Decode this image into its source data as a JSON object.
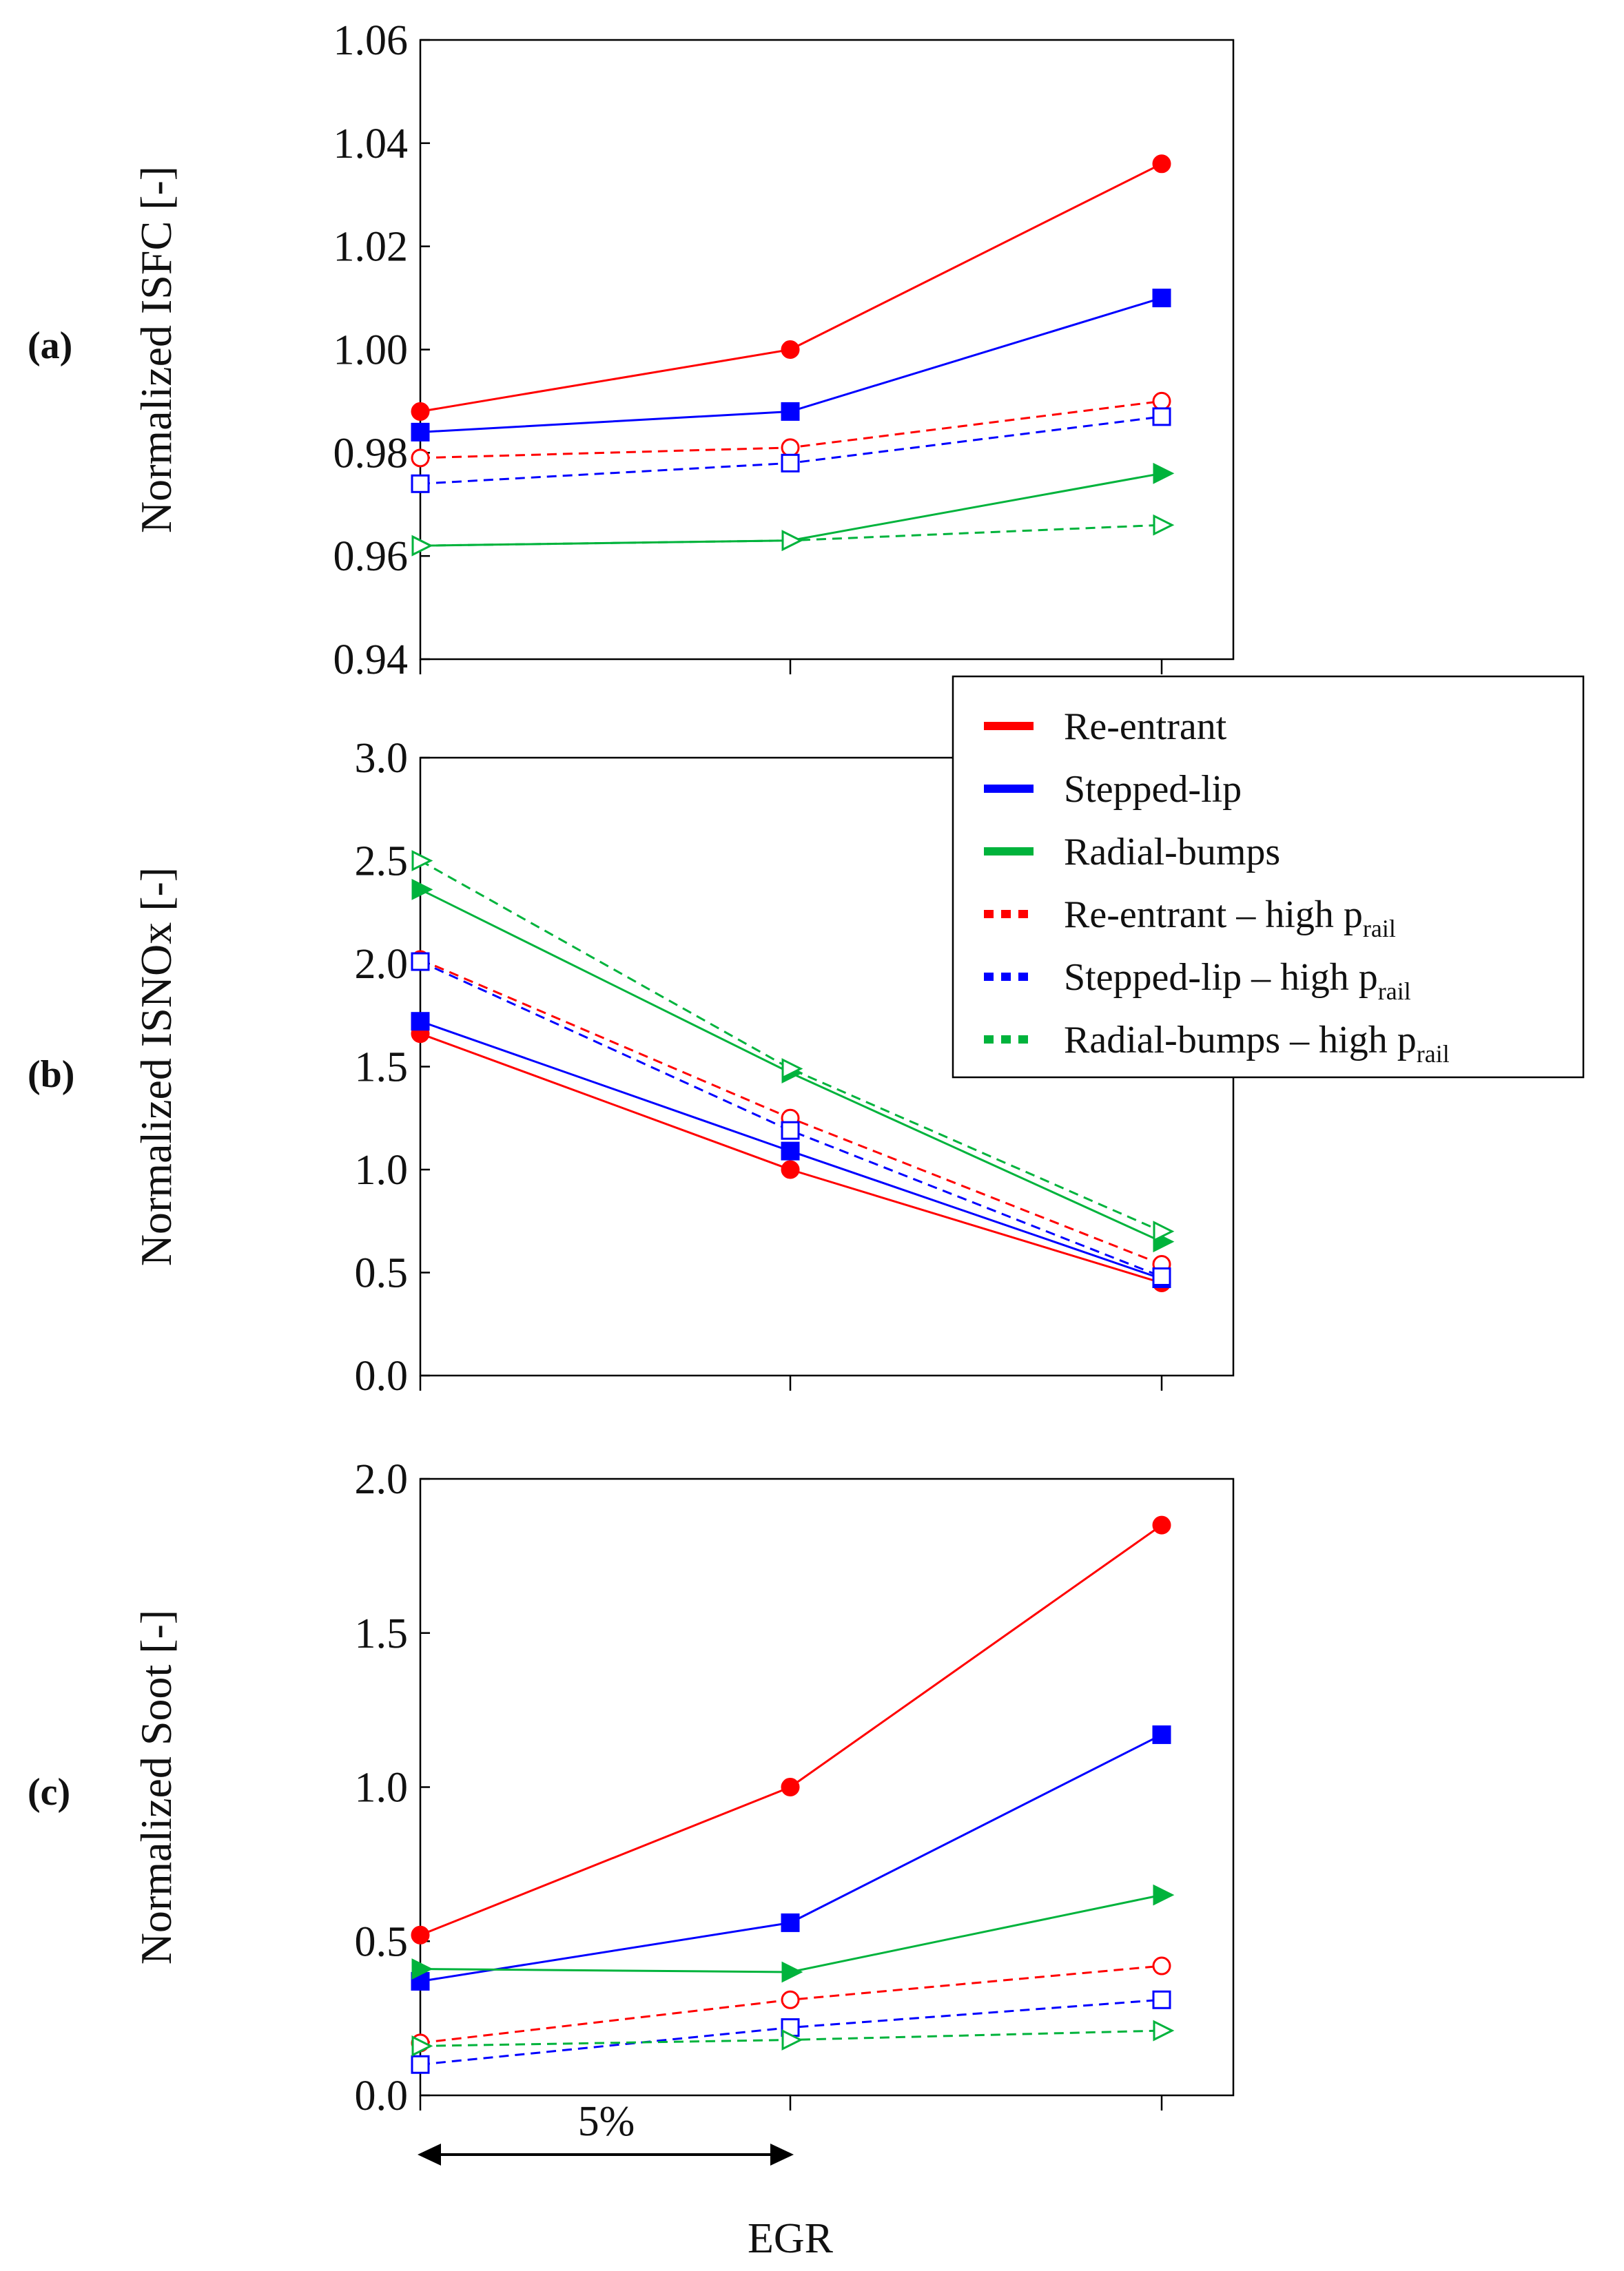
{
  "legend": [
    {
      "label": "Re-entrant",
      "sub": "",
      "color": "#ff0000",
      "dash": false
    },
    {
      "label": "Stepped-lip",
      "sub": "",
      "color": "#0000ff",
      "dash": false
    },
    {
      "label": "Radial-bumps",
      "sub": "",
      "color": "#00b33c",
      "dash": false
    },
    {
      "label": "Re-entrant – high p",
      "sub": "rail",
      "color": "#ff0000",
      "dash": true
    },
    {
      "label": "Stepped-lip – high p",
      "sub": "rail",
      "color": "#0000ff",
      "dash": true
    },
    {
      "label": "Radial-bumps – high p",
      "sub": "rail",
      "color": "#00b33c",
      "dash": true
    }
  ],
  "xlabel": "EGR",
  "annotation": "5%",
  "chart_data": [
    {
      "type": "line",
      "panel_label": "(a)",
      "ylabel": "Normalized ISFC [-]",
      "ylim": [
        0.94,
        1.06
      ],
      "yticks": [
        "0.94",
        "0.96",
        "0.98",
        "1.00",
        "1.02",
        "1.04",
        "1.06"
      ],
      "x": [
        1,
        2,
        3
      ],
      "series": [
        {
          "name": "Re-entrant",
          "color": "#ff0000",
          "dash": false,
          "marker": "circle",
          "filled": true,
          "values": [
            0.988,
            1.0,
            1.036
          ]
        },
        {
          "name": "Stepped-lip",
          "color": "#0000ff",
          "dash": false,
          "marker": "square",
          "filled": true,
          "values": [
            0.984,
            0.988,
            1.01
          ]
        },
        {
          "name": "Radial-bumps",
          "color": "#00b33c",
          "dash": false,
          "marker": "triangle",
          "filled": true,
          "values": [
            0.962,
            0.963,
            0.976
          ]
        },
        {
          "name": "Re-entrant – high prail",
          "color": "#ff0000",
          "dash": true,
          "marker": "circle",
          "filled": false,
          "values": [
            0.979,
            0.981,
            0.99
          ]
        },
        {
          "name": "Stepped-lip – high prail",
          "color": "#0000ff",
          "dash": true,
          "marker": "square",
          "filled": false,
          "values": [
            0.974,
            0.978,
            0.987
          ]
        },
        {
          "name": "Radial-bumps – high prail",
          "color": "#00b33c",
          "dash": true,
          "marker": "triangle",
          "filled": false,
          "values": [
            0.962,
            0.963,
            0.966
          ]
        }
      ]
    },
    {
      "type": "line",
      "panel_label": "(b)",
      "ylabel": "Normalized ISNOx [-]",
      "ylim": [
        0.0,
        3.0
      ],
      "yticks": [
        "0.0",
        "0.5",
        "1.0",
        "1.5",
        "2.0",
        "2.5",
        "3.0"
      ],
      "x": [
        1,
        2,
        3
      ],
      "series": [
        {
          "name": "Re-entrant",
          "color": "#ff0000",
          "dash": false,
          "marker": "circle",
          "filled": true,
          "values": [
            1.66,
            1.0,
            0.45
          ]
        },
        {
          "name": "Stepped-lip",
          "color": "#0000ff",
          "dash": false,
          "marker": "square",
          "filled": true,
          "values": [
            1.72,
            1.09,
            0.47
          ]
        },
        {
          "name": "Radial-bumps",
          "color": "#00b33c",
          "dash": false,
          "marker": "triangle",
          "filled": true,
          "values": [
            2.36,
            1.47,
            0.65
          ]
        },
        {
          "name": "Re-entrant – high prail",
          "color": "#ff0000",
          "dash": true,
          "marker": "circle",
          "filled": false,
          "values": [
            2.02,
            1.25,
            0.54
          ]
        },
        {
          "name": "Stepped-lip – high prail",
          "color": "#0000ff",
          "dash": true,
          "marker": "square",
          "filled": false,
          "values": [
            2.01,
            1.19,
            0.48
          ]
        },
        {
          "name": "Radial-bumps – high prail",
          "color": "#00b33c",
          "dash": true,
          "marker": "triangle",
          "filled": false,
          "values": [
            2.5,
            1.49,
            0.7
          ]
        }
      ]
    },
    {
      "type": "line",
      "panel_label": "(c)",
      "ylabel": "Normalized Soot [-]",
      "ylim": [
        0.0,
        2.0
      ],
      "yticks": [
        "0.0",
        "0.5",
        "1.0",
        "1.5",
        "2.0"
      ],
      "x": [
        1,
        2,
        3
      ],
      "series": [
        {
          "name": "Re-entrant",
          "color": "#ff0000",
          "dash": false,
          "marker": "circle",
          "filled": true,
          "values": [
            0.52,
            1.0,
            1.85
          ]
        },
        {
          "name": "Stepped-lip",
          "color": "#0000ff",
          "dash": false,
          "marker": "square",
          "filled": true,
          "values": [
            0.37,
            0.56,
            1.17
          ]
        },
        {
          "name": "Radial-bumps",
          "color": "#00b33c",
          "dash": false,
          "marker": "triangle",
          "filled": true,
          "values": [
            0.41,
            0.4,
            0.65
          ]
        },
        {
          "name": "Re-entrant – high prail",
          "color": "#ff0000",
          "dash": true,
          "marker": "circle",
          "filled": false,
          "values": [
            0.17,
            0.31,
            0.42
          ]
        },
        {
          "name": "Stepped-lip – high prail",
          "color": "#0000ff",
          "dash": true,
          "marker": "square",
          "filled": false,
          "values": [
            0.1,
            0.22,
            0.31
          ]
        },
        {
          "name": "Radial-bumps – high prail",
          "color": "#00b33c",
          "dash": true,
          "marker": "triangle",
          "filled": false,
          "values": [
            0.16,
            0.18,
            0.21
          ]
        }
      ]
    }
  ]
}
